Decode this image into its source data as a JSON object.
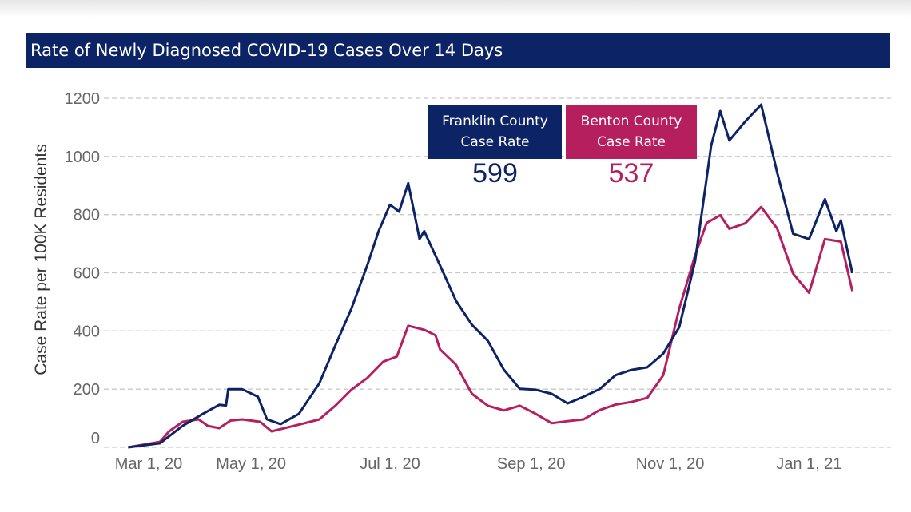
{
  "colors": {
    "franklin": "#0c2466",
    "benton": "#b51f5e",
    "title_bg": "#0c2466",
    "grid": "#c8c8c8"
  },
  "chart_data": {
    "type": "line",
    "title": "Rate of Newly Diagnosed COVID-19 Cases Over 14 Days",
    "xlabel": "",
    "ylabel": "Case Rate per 100K Residents",
    "ylim": [
      0,
      1200
    ],
    "yticks": [
      0,
      200,
      400,
      600,
      800,
      1000,
      1200
    ],
    "xticks": [
      {
        "date": "2020-03-01",
        "label": "Mar 1, 20"
      },
      {
        "date": "2020-05-01",
        "label": "May 1, 20"
      },
      {
        "date": "2020-07-01",
        "label": "Jul 1, 20"
      },
      {
        "date": "2020-09-01",
        "label": "Sep 1, 20"
      },
      {
        "date": "2020-11-01",
        "label": "Nov 1, 20"
      },
      {
        "date": "2021-01-01",
        "label": "Jan 1, 21"
      }
    ],
    "grid": true,
    "legend": [
      {
        "label_line1": "Franklin County",
        "label_line2": "Case Rate",
        "value": "599"
      },
      {
        "label_line1": "Benton County",
        "label_line2": "Case Rate",
        "value": "537"
      }
    ],
    "series": [
      {
        "name": "Franklin County Case Rate",
        "points": [
          [
            "2020-03-08",
            0
          ],
          [
            "2020-03-22",
            14
          ],
          [
            "2020-04-01",
            74
          ],
          [
            "2020-04-10",
            116
          ],
          [
            "2020-04-17",
            146
          ],
          [
            "2020-04-20",
            144
          ],
          [
            "2020-04-21",
            200
          ],
          [
            "2020-04-27",
            200
          ],
          [
            "2020-05-04",
            174
          ],
          [
            "2020-05-08",
            96
          ],
          [
            "2020-05-14",
            80
          ],
          [
            "2020-05-22",
            115
          ],
          [
            "2020-05-31",
            220
          ],
          [
            "2020-06-07",
            350
          ],
          [
            "2020-06-14",
            476
          ],
          [
            "2020-06-21",
            625
          ],
          [
            "2020-06-26",
            743
          ],
          [
            "2020-07-01",
            834
          ],
          [
            "2020-07-05",
            810
          ],
          [
            "2020-07-09",
            908
          ],
          [
            "2020-07-14",
            716
          ],
          [
            "2020-07-16",
            743
          ],
          [
            "2020-07-23",
            625
          ],
          [
            "2020-07-30",
            504
          ],
          [
            "2020-08-06",
            421
          ],
          [
            "2020-08-13",
            366
          ],
          [
            "2020-08-20",
            267
          ],
          [
            "2020-08-27",
            201
          ],
          [
            "2020-09-03",
            198
          ],
          [
            "2020-09-10",
            184
          ],
          [
            "2020-09-17",
            151
          ],
          [
            "2020-09-24",
            174
          ],
          [
            "2020-10-01",
            200
          ],
          [
            "2020-10-08",
            248
          ],
          [
            "2020-10-15",
            266
          ],
          [
            "2020-10-22",
            275
          ],
          [
            "2020-10-29",
            322
          ],
          [
            "2020-11-05",
            413
          ],
          [
            "2020-11-12",
            641
          ],
          [
            "2020-11-19",
            1037
          ],
          [
            "2020-11-23",
            1156
          ],
          [
            "2020-11-27",
            1055
          ],
          [
            "2020-12-04",
            1120
          ],
          [
            "2020-12-11",
            1178
          ],
          [
            "2020-12-18",
            945
          ],
          [
            "2020-12-25",
            734
          ],
          [
            "2021-01-01",
            716
          ],
          [
            "2021-01-08",
            853
          ],
          [
            "2021-01-13",
            743
          ],
          [
            "2021-01-15",
            780
          ],
          [
            "2021-01-20",
            599
          ]
        ]
      },
      {
        "name": "Benton County Case Rate",
        "points": [
          [
            "2020-03-08",
            0
          ],
          [
            "2020-03-22",
            19
          ],
          [
            "2020-03-26",
            55
          ],
          [
            "2020-04-01",
            88
          ],
          [
            "2020-04-08",
            96
          ],
          [
            "2020-04-12",
            74
          ],
          [
            "2020-04-17",
            66
          ],
          [
            "2020-04-22",
            92
          ],
          [
            "2020-04-27",
            96
          ],
          [
            "2020-05-05",
            88
          ],
          [
            "2020-05-10",
            55
          ],
          [
            "2020-05-22",
            78
          ],
          [
            "2020-05-31",
            96
          ],
          [
            "2020-06-07",
            143
          ],
          [
            "2020-06-14",
            198
          ],
          [
            "2020-06-21",
            238
          ],
          [
            "2020-06-28",
            294
          ],
          [
            "2020-07-04",
            312
          ],
          [
            "2020-07-09",
            418
          ],
          [
            "2020-07-16",
            404
          ],
          [
            "2020-07-21",
            385
          ],
          [
            "2020-07-23",
            336
          ],
          [
            "2020-07-30",
            284
          ],
          [
            "2020-08-06",
            184
          ],
          [
            "2020-08-13",
            143
          ],
          [
            "2020-08-20",
            127
          ],
          [
            "2020-08-27",
            143
          ],
          [
            "2020-09-03",
            115
          ],
          [
            "2020-09-10",
            83
          ],
          [
            "2020-09-17",
            90
          ],
          [
            "2020-09-24",
            96
          ],
          [
            "2020-10-01",
            128
          ],
          [
            "2020-10-08",
            147
          ],
          [
            "2020-10-15",
            156
          ],
          [
            "2020-10-22",
            170
          ],
          [
            "2020-10-29",
            248
          ],
          [
            "2020-11-05",
            477
          ],
          [
            "2020-11-12",
            660
          ],
          [
            "2020-11-17",
            771
          ],
          [
            "2020-11-23",
            798
          ],
          [
            "2020-11-27",
            751
          ],
          [
            "2020-12-04",
            770
          ],
          [
            "2020-12-11",
            826
          ],
          [
            "2020-12-18",
            752
          ],
          [
            "2020-12-25",
            597
          ],
          [
            "2021-01-01",
            531
          ],
          [
            "2021-01-08",
            716
          ],
          [
            "2021-01-15",
            707
          ],
          [
            "2021-01-20",
            537
          ]
        ]
      }
    ]
  }
}
